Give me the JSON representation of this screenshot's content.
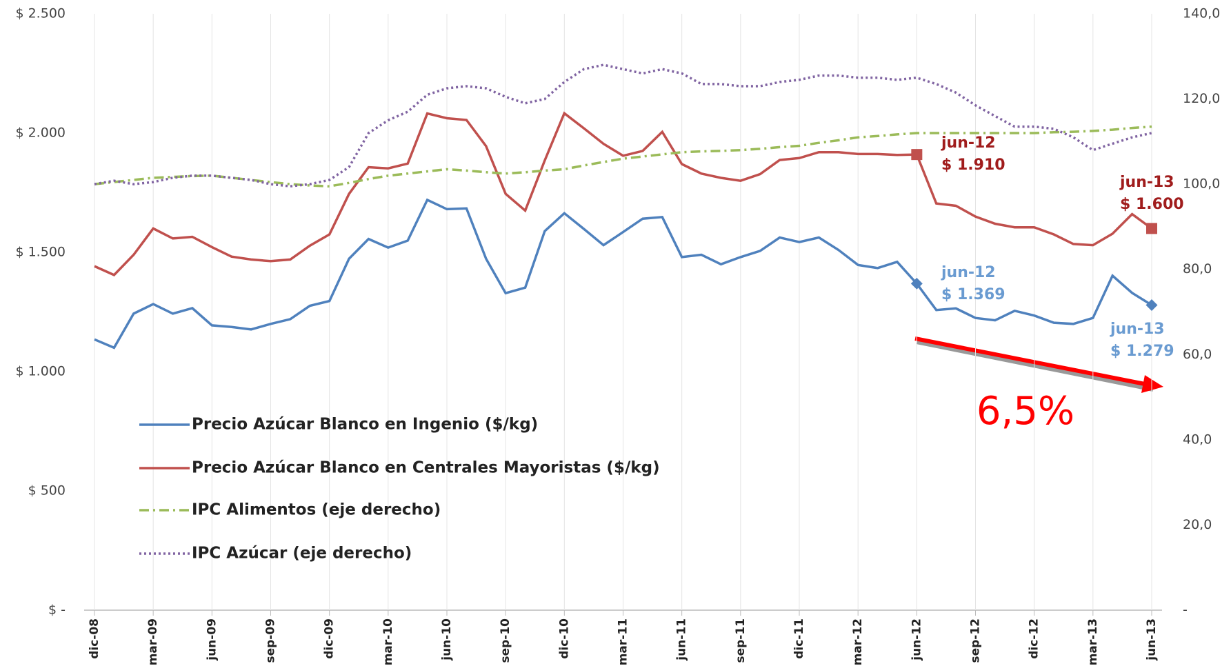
{
  "chart_data": {
    "type": "line",
    "categories": [
      "dic-08",
      null,
      null,
      "mar-09",
      null,
      null,
      "jun-09",
      null,
      null,
      "sep-09",
      null,
      null,
      "dic-09",
      null,
      null,
      "mar-10",
      null,
      null,
      "jun-10",
      null,
      null,
      "sep-10",
      null,
      null,
      "dic-10",
      null,
      null,
      "mar-11",
      null,
      null,
      "jun-11",
      null,
      null,
      "sep-11",
      null,
      null,
      "dic-11",
      null,
      null,
      "mar-12",
      null,
      null,
      "jun-12",
      null,
      null,
      "sep-12",
      null,
      null,
      "dic-12",
      null,
      null,
      "mar-13",
      null,
      null,
      "jun-13"
    ],
    "series": [
      {
        "name": "Precio Azúcar Blanco en Ingenio ($/kg)",
        "color": "#4f81bd",
        "dash": "solid",
        "values": [
          1135,
          1100,
          1243,
          1283,
          1243,
          1266,
          1194,
          1187,
          1177,
          1200,
          1220,
          1276,
          1296,
          1473,
          1556,
          1520,
          1549,
          1720,
          1681,
          1684,
          1473,
          1329,
          1352,
          1589,
          1664,
          1598,
          1530,
          1585,
          1641,
          1648,
          1480,
          1490,
          1450,
          1480,
          1506,
          1562,
          1543,
          1562,
          1510,
          1447,
          1434,
          1460,
          1369,
          1258,
          1265,
          1225,
          1215,
          1255,
          1235,
          1205,
          1200,
          1225,
          1402,
          1330,
          1279
        ]
      },
      {
        "name": "Precio Azúcar Blanco en Centrales Mayoristas ($/kg)",
        "color": "#c0504d",
        "dash": "solid",
        "values": [
          1442,
          1405,
          1490,
          1600,
          1558,
          1565,
          1522,
          1482,
          1470,
          1463,
          1470,
          1528,
          1575,
          1745,
          1857,
          1852,
          1872,
          2082,
          2062,
          2055,
          1945,
          1745,
          1675,
          1885,
          2083,
          2020,
          1955,
          1905,
          1925,
          2005,
          1870,
          1830,
          1812,
          1800,
          1828,
          1887,
          1895,
          1920,
          1920,
          1912,
          1912,
          1908,
          1910,
          1705,
          1695,
          1650,
          1620,
          1605,
          1605,
          1575,
          1535,
          1530,
          1578,
          1660,
          1600
        ]
      },
      {
        "name": "IPC Alimentos (eje derecho)",
        "color": "#9bbb59",
        "dash": "dash-dot",
        "axis": "y2",
        "values": [
          100,
          100.5,
          101,
          101.5,
          101.7,
          101.9,
          102,
          101.5,
          101,
          100.5,
          100,
          99.7,
          99.5,
          100.3,
          101.2,
          102,
          102.5,
          103,
          103.5,
          103.2,
          102.8,
          102.5,
          102.8,
          103.2,
          103.5,
          104.4,
          105.2,
          106,
          106.5,
          107,
          107.5,
          107.7,
          107.8,
          108,
          108.3,
          108.7,
          109,
          109.7,
          110.3,
          111,
          111.3,
          111.7,
          112,
          112,
          112,
          112,
          112,
          112,
          112,
          112.2,
          112.3,
          112.5,
          112.8,
          113.2,
          113.5
        ]
      },
      {
        "name": "IPC Azúcar (eje derecho)",
        "color": "#8064a2",
        "dash": "dot",
        "axis": "y2",
        "values": [
          100,
          100.8,
          100,
          100.5,
          101.5,
          102,
          102,
          101.5,
          101,
          100,
          99.5,
          100,
          101,
          104,
          112,
          115,
          117,
          121,
          122.5,
          123,
          122.5,
          120.5,
          119,
          120,
          124,
          127,
          128,
          127,
          126,
          127,
          126,
          123.5,
          123.5,
          123,
          123,
          124,
          124.5,
          125.5,
          125.5,
          125,
          125,
          124.5,
          125,
          123.5,
          121.5,
          118.5,
          116,
          113.5,
          113.5,
          113,
          111,
          108,
          109.5,
          111,
          112
        ]
      }
    ],
    "ylim": [
      0,
      2500
    ],
    "yticks": [
      {
        "value": 0,
        "label": "$ -"
      },
      {
        "value": 500,
        "label": "$ 500"
      },
      {
        "value": 1000,
        "label": "$ 1.000"
      },
      {
        "value": 1500,
        "label": "$ 1.500"
      },
      {
        "value": 2000,
        "label": "$ 2.000"
      },
      {
        "value": 2500,
        "label": "$ 2.500"
      }
    ],
    "y2lim": [
      0,
      140
    ],
    "y2ticks": [
      {
        "value": 0,
        "label": "-"
      },
      {
        "value": 20,
        "label": "20,0"
      },
      {
        "value": 40,
        "label": "40,0"
      },
      {
        "value": 60,
        "label": "60,0"
      },
      {
        "value": 80,
        "label": "80,0"
      },
      {
        "value": 100,
        "label": "100,0"
      },
      {
        "value": 120,
        "label": "120,0"
      },
      {
        "value": 140,
        "label": "140,0"
      }
    ],
    "grid": true,
    "annotations": [
      {
        "lines": [
          "jun-12",
          "$ 1.910"
        ],
        "color": "#a01c1c"
      },
      {
        "lines": [
          "jun-12",
          "$ 1.369"
        ],
        "color": "#6a9bd1"
      },
      {
        "lines": [
          "jun-13",
          "$ 1.600"
        ],
        "color": "#a01c1c"
      },
      {
        "lines": [
          "jun-13",
          "$ 1.279"
        ],
        "color": "#6a9bd1"
      }
    ],
    "change_label": "6,5%"
  }
}
